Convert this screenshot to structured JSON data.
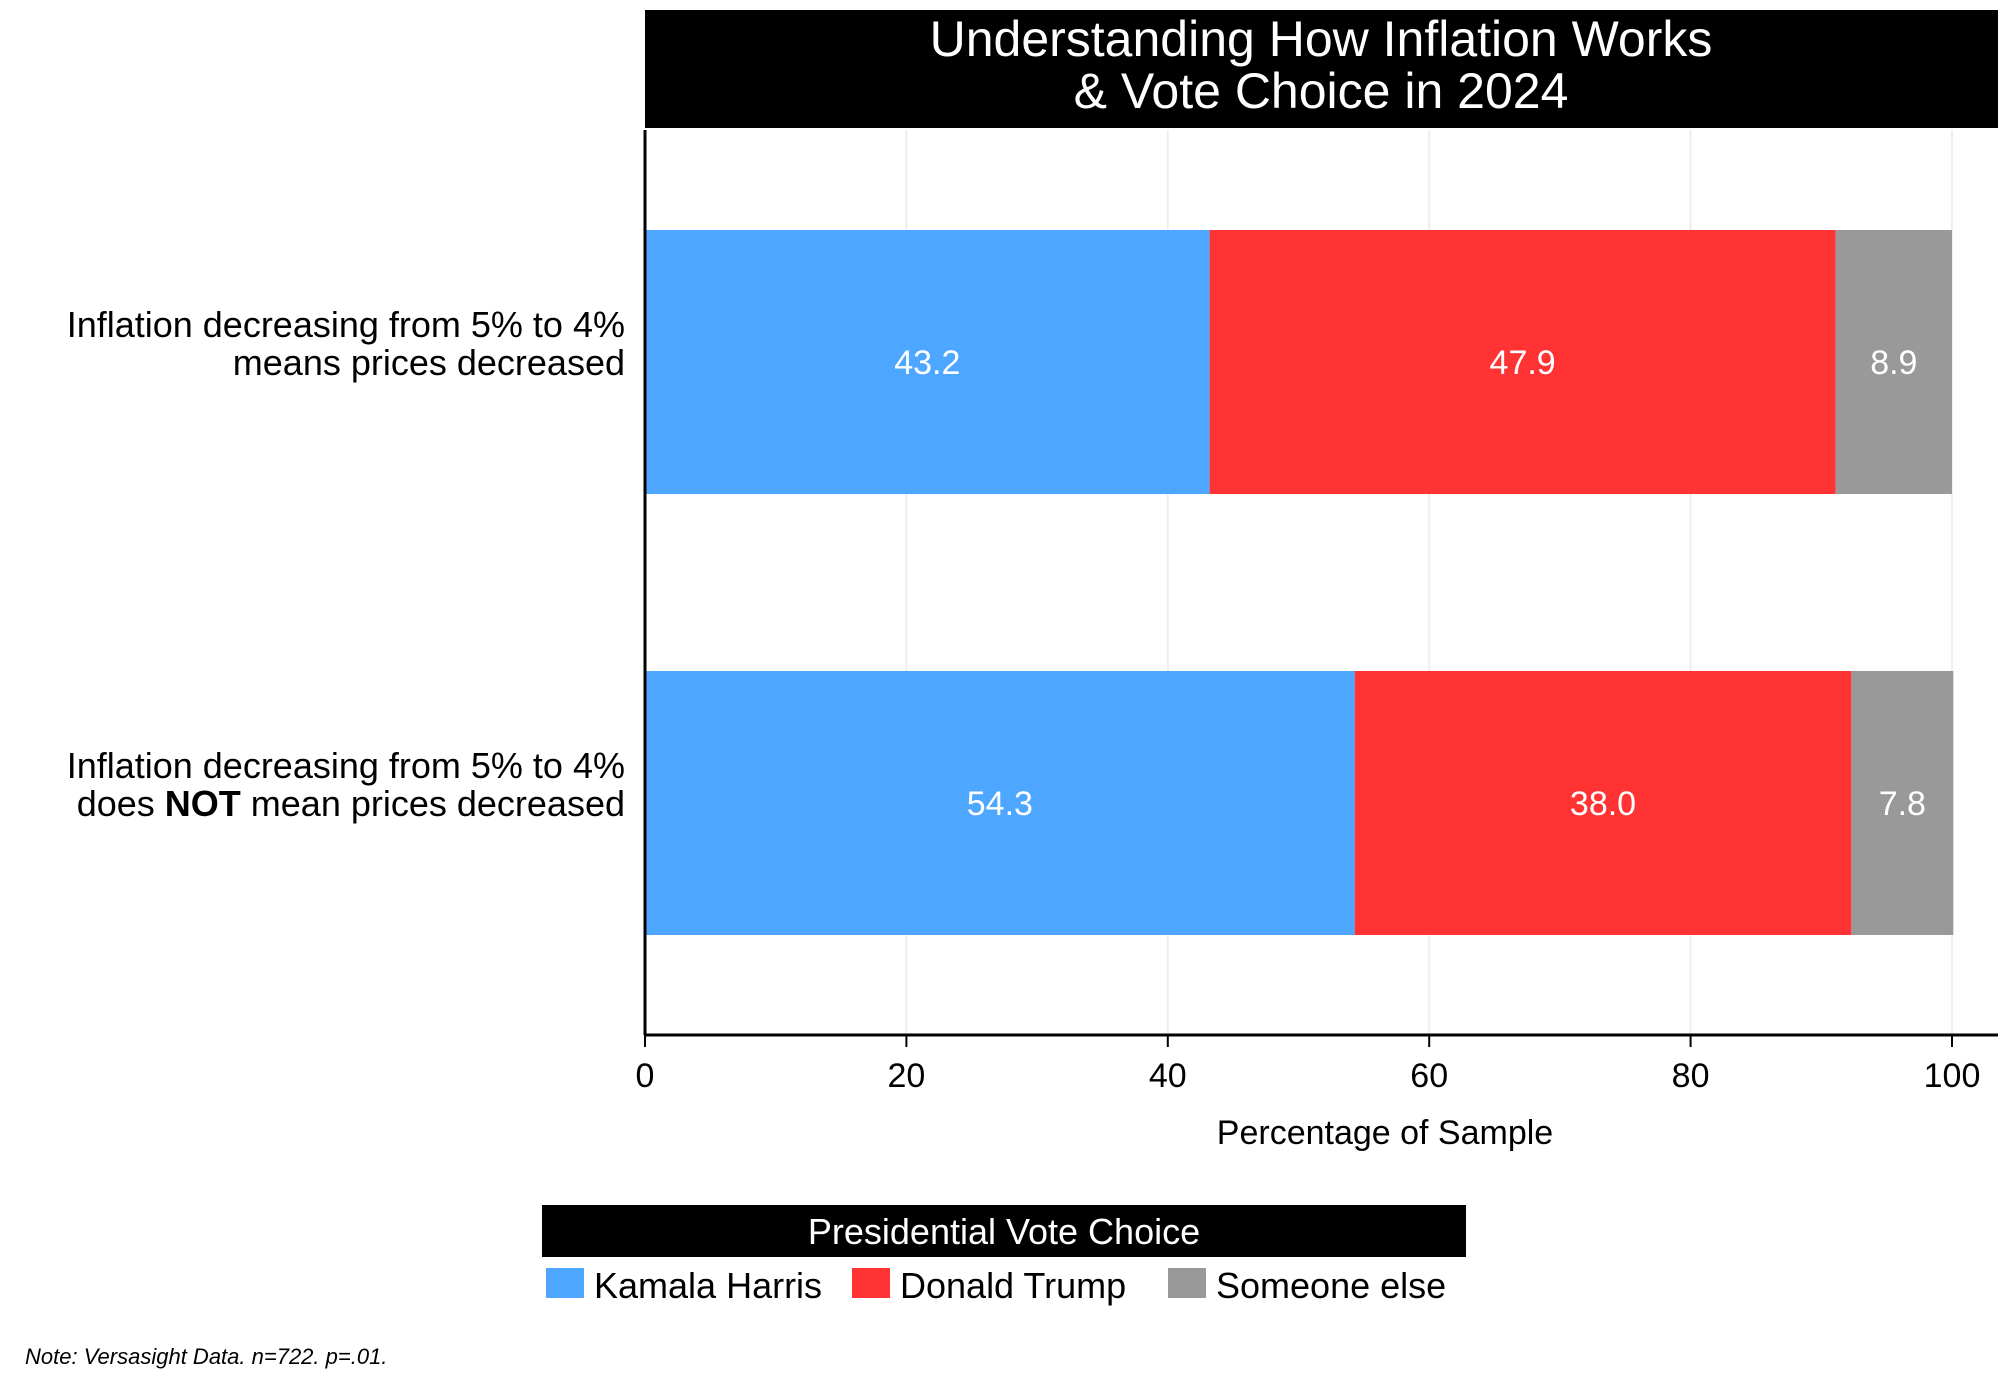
{
  "chart_data": {
    "type": "bar",
    "orientation": "horizontal",
    "stacked": true,
    "title": [
      "Understanding How Inflation Works",
      "& Vote Choice in 2024"
    ],
    "categories": [
      {
        "parts": [
          {
            "text": "Inflation decreasing from 5% to 4%",
            "bold": false
          },
          {
            "text": "means prices decreased",
            "bold": false
          }
        ]
      },
      {
        "parts": [
          {
            "text": "Inflation decreasing from 5% to 4%",
            "bold": false
          },
          {
            "text": "does ",
            "bold": false,
            "inline_with": [
              "NOT",
              " mean prices decreased"
            ]
          }
        ]
      }
    ],
    "category_lines": [
      [
        [
          {
            "t": "Inflation decreasing from 5% to 4%",
            "b": false
          }
        ],
        [
          {
            "t": "means prices decreased",
            "b": false
          }
        ]
      ],
      [
        [
          {
            "t": "Inflation decreasing from 5% to 4%",
            "b": false
          }
        ],
        [
          {
            "t": "does ",
            "b": false
          },
          {
            "t": "NOT",
            "b": true
          },
          {
            "t": " mean prices decreased",
            "b": false
          }
        ]
      ]
    ],
    "series": [
      {
        "name": "Kamala Harris",
        "color": "#4da6ff",
        "values": [
          43.2,
          54.3
        ]
      },
      {
        "name": "Donald Trump",
        "color": "#ff3333",
        "values": [
          47.9,
          38.0
        ]
      },
      {
        "name": "Someone else",
        "color": "#999999",
        "values": [
          8.9,
          7.8
        ]
      }
    ],
    "xlabel": "Percentage of Sample",
    "xlim": [
      0,
      100
    ],
    "xticks": [
      0,
      20,
      40,
      60,
      80,
      100
    ],
    "grid": true,
    "legend": {
      "title": "Presidential Vote Choice",
      "position": "bottom"
    },
    "note": "Note: Versasight Data. n=722. p=.01."
  }
}
